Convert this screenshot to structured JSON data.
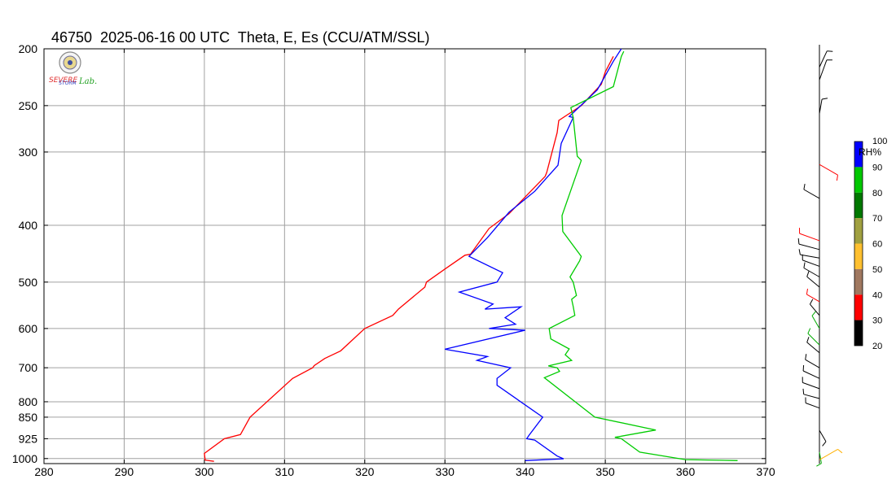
{
  "title": "46750  2025-06-16 00 UTC  Theta, E, Es (CCU/ATM/SSL)",
  "logo": {
    "text1": "SEVERE",
    "text2": "STORM",
    "text3": "Lab."
  },
  "chart_data": {
    "type": "line",
    "title": "46750  2025-06-16 00 UTC  Theta, E, Es (CCU/ATM/SSL)",
    "xlabel": "",
    "ylabel": "",
    "xlim": [
      280,
      370
    ],
    "ylim": [
      1020,
      200
    ],
    "y_scale": "log-pressure",
    "grid": true,
    "x_ticks": [
      280,
      290,
      300,
      310,
      320,
      330,
      340,
      350,
      360,
      370
    ],
    "y_ticks": [
      200,
      250,
      300,
      400,
      500,
      600,
      700,
      800,
      850,
      925,
      1000
    ],
    "series": [
      {
        "color": "#ff0000",
        "points": [
          [
            301.2,
            1011
          ],
          [
            300.1,
            1006
          ],
          [
            300.0,
            980
          ],
          [
            302.5,
            925
          ],
          [
            304.5,
            910
          ],
          [
            305.7,
            850
          ],
          [
            311.0,
            730
          ],
          [
            313.5,
            700
          ],
          [
            313.7,
            694
          ],
          [
            315.0,
            675
          ],
          [
            315.5,
            670
          ],
          [
            317.0,
            655
          ],
          [
            320.0,
            600
          ],
          [
            323.5,
            570
          ],
          [
            324.2,
            556
          ],
          [
            324.6,
            550
          ],
          [
            327.5,
            510
          ],
          [
            327.7,
            500
          ],
          [
            330.0,
            475
          ],
          [
            332.5,
            450
          ],
          [
            333.2,
            448
          ],
          [
            335.5,
            405
          ],
          [
            338.0,
            382
          ],
          [
            342.5,
            330
          ],
          [
            342.7,
            325
          ],
          [
            344.0,
            278
          ],
          [
            344.2,
            265
          ],
          [
            347.0,
            250
          ],
          [
            349.5,
            230
          ],
          [
            350.0,
            219
          ],
          [
            351.0,
            206
          ]
        ]
      },
      {
        "color": "#0000ff",
        "points": [
          [
            340.0,
            1008
          ],
          [
            344.8,
            1001
          ],
          [
            344.0,
            990
          ],
          [
            341.2,
            930
          ],
          [
            340.2,
            925
          ],
          [
            340.5,
            912
          ],
          [
            342.2,
            850
          ],
          [
            336.5,
            750
          ],
          [
            336.5,
            730
          ],
          [
            338.2,
            700
          ],
          [
            334.0,
            680
          ],
          [
            335.3,
            670
          ],
          [
            330.0,
            651
          ],
          [
            340.0,
            604
          ],
          [
            335.5,
            600
          ],
          [
            338.8,
            590
          ],
          [
            337.5,
            575
          ],
          [
            339.5,
            551
          ],
          [
            335.0,
            556
          ],
          [
            336.0,
            545
          ],
          [
            331.8,
            520
          ],
          [
            336.5,
            500
          ],
          [
            337.2,
            482
          ],
          [
            333.0,
            452
          ],
          [
            335.3,
            420
          ],
          [
            338.0,
            380
          ],
          [
            341.2,
            350
          ],
          [
            342.7,
            332
          ],
          [
            344.1,
            316
          ],
          [
            344.5,
            290
          ],
          [
            346.0,
            262
          ],
          [
            345.5,
            261
          ],
          [
            349.0,
            235
          ],
          [
            351.0,
            210
          ],
          [
            352.0,
            200
          ]
        ]
      },
      {
        "color": "#00cc00",
        "points": [
          [
            366.5,
            1008
          ],
          [
            360.0,
            1004
          ],
          [
            354.3,
            975
          ],
          [
            352.0,
            925
          ],
          [
            351.2,
            920
          ],
          [
            356.3,
            894
          ],
          [
            348.7,
            850
          ],
          [
            342.4,
            728
          ],
          [
            344.3,
            710
          ],
          [
            344.0,
            700
          ],
          [
            342.9,
            695
          ],
          [
            345.8,
            680
          ],
          [
            345.0,
            665
          ],
          [
            345.5,
            650
          ],
          [
            343.2,
            625
          ],
          [
            343.0,
            600
          ],
          [
            346.2,
            570
          ],
          [
            346.0,
            550
          ],
          [
            345.8,
            535
          ],
          [
            346.4,
            527
          ],
          [
            346.0,
            500
          ],
          [
            345.6,
            490
          ],
          [
            346.8,
            460
          ],
          [
            347.0,
            452
          ],
          [
            344.7,
            410
          ],
          [
            344.6,
            385
          ],
          [
            347.0,
            310
          ],
          [
            346.5,
            305
          ],
          [
            346.0,
            262
          ],
          [
            345.7,
            252
          ],
          [
            351.0,
            232
          ],
          [
            352.0,
            206
          ],
          [
            352.3,
            202
          ]
        ]
      }
    ]
  },
  "colorbar": {
    "label": "RH%",
    "ticks": [
      "100",
      "90",
      "80",
      "70",
      "60",
      "50",
      "40",
      "30",
      "20"
    ],
    "colors": [
      "#0000ff",
      "#00c800",
      "#007800",
      "#a0a040",
      "#ffc030",
      "#a07860",
      "#ff0000",
      "#000000"
    ]
  },
  "wind_profile": {
    "barbs": [
      {
        "p": 215,
        "color": "#000000",
        "len": 22,
        "angle": -65
      },
      {
        "p": 226,
        "color": "#000000",
        "len": 26,
        "angle": -70
      },
      {
        "p": 258,
        "color": "#000000",
        "len": 18,
        "angle": -80
      },
      {
        "p": 315,
        "color": "#ff0000",
        "len": 26,
        "angle": 30
      },
      {
        "p": 360,
        "color": "#000000",
        "len": 22,
        "angle": -150
      },
      {
        "p": 425,
        "color": "#ff0000",
        "len": 26,
        "angle": -160
      },
      {
        "p": 440,
        "color": "#000000",
        "len": 26,
        "angle": -165
      },
      {
        "p": 455,
        "color": "#000000",
        "len": 24,
        "angle": -170
      },
      {
        "p": 470,
        "color": "#000000",
        "len": 22,
        "angle": -160
      },
      {
        "p": 490,
        "color": "#000000",
        "len": 22,
        "angle": -150
      },
      {
        "p": 510,
        "color": "#000000",
        "len": 20,
        "angle": -140
      },
      {
        "p": 540,
        "color": "#ff0000",
        "len": 18,
        "angle": -150
      },
      {
        "p": 570,
        "color": "#000000",
        "len": 18,
        "angle": -130
      },
      {
        "p": 600,
        "color": "#00aa00",
        "len": 18,
        "angle": -120
      },
      {
        "p": 640,
        "color": "#00aa00",
        "len": 20,
        "angle": -135
      },
      {
        "p": 660,
        "color": "#000000",
        "len": 20,
        "angle": -140
      },
      {
        "p": 700,
        "color": "#000000",
        "len": 20,
        "angle": -150
      },
      {
        "p": 730,
        "color": "#000000",
        "len": 22,
        "angle": -155
      },
      {
        "p": 760,
        "color": "#000000",
        "len": 22,
        "angle": -160
      },
      {
        "p": 790,
        "color": "#000000",
        "len": 20,
        "angle": -165
      },
      {
        "p": 820,
        "color": "#000000",
        "len": 18,
        "angle": -160
      },
      {
        "p": 895,
        "color": "#000000",
        "len": 16,
        "angle": 60
      },
      {
        "p": 975,
        "color": "#00aa00",
        "len": 14,
        "angle": 80
      },
      {
        "p": 1005,
        "color": "#ffb000",
        "len": 26,
        "angle": -30
      }
    ]
  }
}
